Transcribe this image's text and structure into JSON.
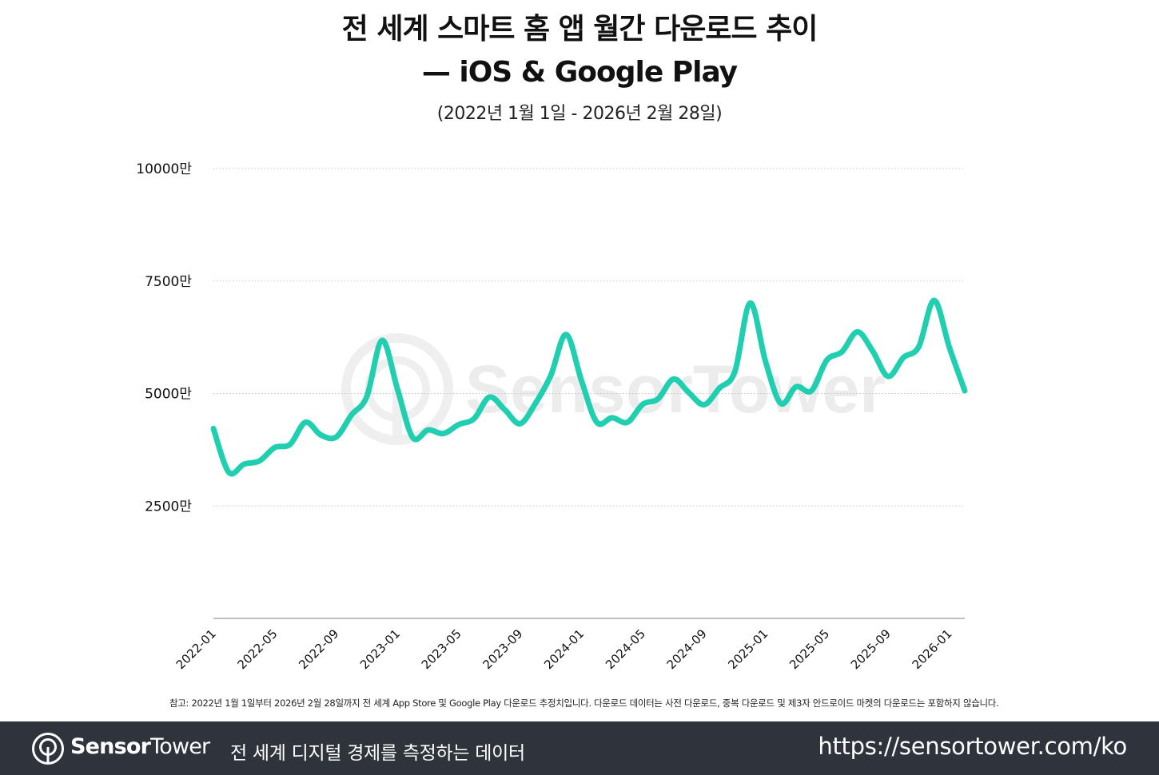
{
  "header": {
    "title_line1": "전 세계 스마트 홈 앱 월간 다운로드 추이",
    "title_line2": "— iOS & Google Play",
    "subtitle": "(2022년 1월 1일 - 2026년 2월 28일)"
  },
  "watermark": {
    "text": "SensorTower"
  },
  "chart_data": {
    "type": "line",
    "title": "전 세계 스마트 홈 앱 월간 다운로드 추이 — iOS & Google Play",
    "subtitle": "(2022년 1월 1일 - 2026년 2월 28일)",
    "xlabel": "",
    "ylabel": "",
    "ylim": [
      0,
      10000
    ],
    "y_unit": "만",
    "y_ticks": [
      2500,
      5000,
      7500,
      10000
    ],
    "y_tick_labels": [
      "2500만",
      "5000만",
      "7500만",
      "10000만"
    ],
    "x_tick_labels": [
      "2022-01",
      "2022-05",
      "2022-09",
      "2023-01",
      "2023-05",
      "2023-09",
      "2024-01",
      "2024-05",
      "2024-09",
      "2025-01",
      "2025-05",
      "2025-09",
      "2026-01"
    ],
    "grid": "horizontal-dotted",
    "legend": "none",
    "color": "#1fcfb0",
    "x": [
      "2022-01",
      "2022-02",
      "2022-03",
      "2022-04",
      "2022-05",
      "2022-06",
      "2022-07",
      "2022-08",
      "2022-09",
      "2022-10",
      "2022-11",
      "2022-12",
      "2023-01",
      "2023-02",
      "2023-03",
      "2023-04",
      "2023-05",
      "2023-06",
      "2023-07",
      "2023-08",
      "2023-09",
      "2023-10",
      "2023-11",
      "2023-12",
      "2024-01",
      "2024-02",
      "2024-03",
      "2024-04",
      "2024-05",
      "2024-06",
      "2024-07",
      "2024-08",
      "2024-09",
      "2024-10",
      "2024-11",
      "2024-12",
      "2025-01",
      "2025-02",
      "2025-03",
      "2025-04",
      "2025-05",
      "2025-06",
      "2025-07",
      "2025-08",
      "2025-09",
      "2025-10",
      "2025-11",
      "2025-12",
      "2026-01",
      "2026-02"
    ],
    "values": [
      4220,
      3250,
      3430,
      3500,
      3800,
      3870,
      4360,
      4080,
      4030,
      4520,
      4930,
      6180,
      5100,
      4020,
      4190,
      4110,
      4310,
      4440,
      4920,
      4640,
      4330,
      4780,
      5400,
      6310,
      5290,
      4360,
      4460,
      4360,
      4760,
      4880,
      5320,
      5020,
      4750,
      5120,
      5480,
      7010,
      5720,
      4780,
      5150,
      5060,
      5740,
      5930,
      6370,
      5940,
      5380,
      5800,
      6040,
      7070,
      6020,
      5060
    ]
  },
  "note": "참고: 2022년 1월 1일부터 2026년 2월 28일까지 전 세계 App Store 및 Google Play 다운로드 추정치입니다. 다운로드 데이터는 사전 다운로드, 중복 다운로드 및 제3자 안드로이드 마켓의 다운로드는 포함하지 않습니다.",
  "footer": {
    "brand_bold": "Sensor",
    "brand_light": "Tower",
    "tagline": "전 세계 디지털 경제를 측정하는 데이터",
    "url": "https://sensortower.com/ko",
    "bg_color": "#2f343c"
  }
}
